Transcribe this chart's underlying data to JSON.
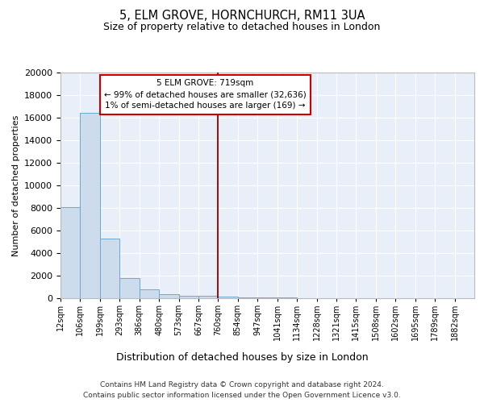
{
  "title": "5, ELM GROVE, HORNCHURCH, RM11 3UA",
  "subtitle": "Size of property relative to detached houses in London",
  "xlabel": "Distribution of detached houses by size in London",
  "ylabel": "Number of detached properties",
  "bar_color": "#ccdcec",
  "bar_edge_color": "#6aaad4",
  "background_color": "#e8eff8",
  "grid_color": "#ffffff",
  "bin_labels": [
    "12sqm",
    "106sqm",
    "199sqm",
    "293sqm",
    "386sqm",
    "480sqm",
    "573sqm",
    "667sqm",
    "760sqm",
    "854sqm",
    "947sqm",
    "1041sqm",
    "1134sqm",
    "1228sqm",
    "1321sqm",
    "1415sqm",
    "1508sqm",
    "1602sqm",
    "1695sqm",
    "1789sqm",
    "1882sqm"
  ],
  "bar_heights": [
    8100,
    16400,
    5300,
    1800,
    800,
    350,
    250,
    200,
    150,
    100,
    60,
    40,
    30,
    20,
    15,
    10,
    8,
    5,
    4,
    3,
    0
  ],
  "property_line_x": 8,
  "property_line_color": "#8b1a1a",
  "annotation_text": "5 ELM GROVE: 719sqm\n← 99% of detached houses are smaller (32,636)\n1% of semi-detached houses are larger (169) →",
  "annotation_box_color": "#ffffff",
  "annotation_box_edge_color": "#cc0000",
  "ylim": [
    0,
    20000
  ],
  "yticks": [
    0,
    2000,
    4000,
    6000,
    8000,
    10000,
    12000,
    14000,
    16000,
    18000,
    20000
  ],
  "footer_line1": "Contains HM Land Registry data © Crown copyright and database right 2024.",
  "footer_line2": "Contains public sector information licensed under the Open Government Licence v3.0."
}
